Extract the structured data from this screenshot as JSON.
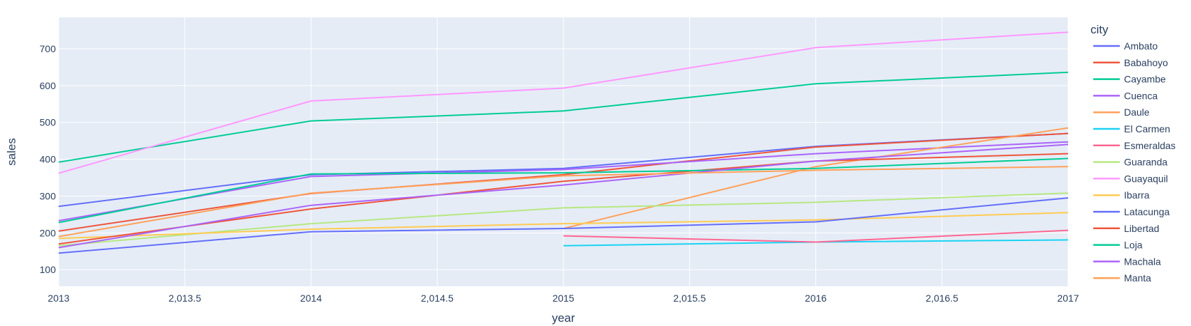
{
  "chart_data": {
    "type": "line",
    "xlabel": "year",
    "ylabel": "sales",
    "xlim": [
      2013,
      2017
    ],
    "ylim": [
      55,
      785
    ],
    "x_ticks": [
      2013,
      2013.5,
      2014,
      2014.5,
      2015,
      2015.5,
      2016,
      2016.5,
      2017
    ],
    "x_tick_labels": [
      "2013",
      "2,013.5",
      "2014",
      "2,014.5",
      "2015",
      "2,015.5",
      "2016",
      "2,016.5",
      "2017"
    ],
    "y_ticks": [
      100,
      200,
      300,
      400,
      500,
      600,
      700
    ],
    "y_tick_labels": [
      "100",
      "200",
      "300",
      "400",
      "500",
      "600",
      "700"
    ],
    "grid": true,
    "legend_title": "city",
    "legend_position": "right",
    "plot_bgcolor": "#e5ecf6",
    "x": [
      2013,
      2014,
      2015,
      2016,
      2017
    ],
    "series": [
      {
        "name": "Ambato",
        "color": "#636efa",
        "values": [
          272,
          358,
          375,
          435,
          470
        ]
      },
      {
        "name": "Babahoyo",
        "color": "#EF553B",
        "values": [
          205,
          307,
          358,
          433,
          470
        ]
      },
      {
        "name": "Cayambe",
        "color": "#00cc96",
        "values": [
          392,
          504,
          531,
          605,
          636
        ]
      },
      {
        "name": "Cuenca",
        "color": "#ab63fa",
        "values": [
          233,
          353,
          372,
          415,
          447
        ]
      },
      {
        "name": "Daule",
        "color": "#FFA15A",
        "values": [
          null,
          null,
          212,
          380,
          485
        ]
      },
      {
        "name": "El Carmen",
        "color": "#19d3f3",
        "values": [
          null,
          null,
          165,
          175,
          181
        ]
      },
      {
        "name": "Esmeraldas",
        "color": "#FF6692",
        "values": [
          null,
          null,
          192,
          175,
          207
        ]
      },
      {
        "name": "Guaranda",
        "color": "#B6E880",
        "values": [
          165,
          225,
          268,
          283,
          308
        ]
      },
      {
        "name": "Guayaquil",
        "color": "#FF97FF",
        "values": [
          362,
          558,
          593,
          703,
          745
        ]
      },
      {
        "name": "Ibarra",
        "color": "#FECB52",
        "values": [
          185,
          210,
          225,
          235,
          255
        ]
      },
      {
        "name": "Latacunga",
        "color": "#636efa",
        "values": [
          145,
          203,
          212,
          230,
          295
        ]
      },
      {
        "name": "Libertad",
        "color": "#EF553B",
        "values": [
          170,
          265,
          340,
          395,
          415
        ]
      },
      {
        "name": "Loja",
        "color": "#00cc96",
        "values": [
          228,
          360,
          363,
          375,
          402
        ]
      },
      {
        "name": "Machala",
        "color": "#ab63fa",
        "values": [
          160,
          275,
          330,
          395,
          440
        ]
      },
      {
        "name": "Manta",
        "color": "#FFA15A",
        "values": [
          190,
          308,
          355,
          370,
          380
        ]
      }
    ]
  }
}
